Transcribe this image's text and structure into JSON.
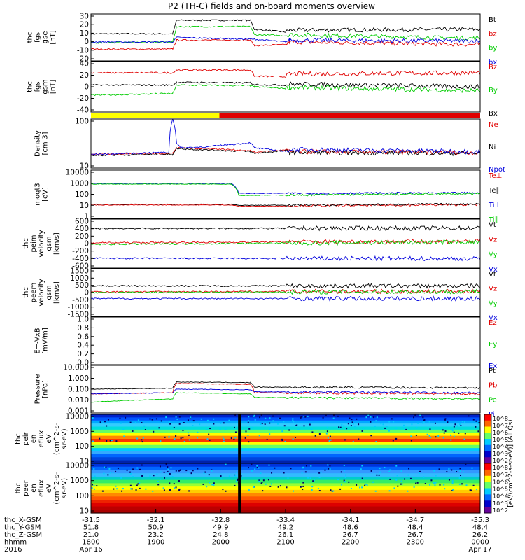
{
  "title": "P2 (TH-C) fields and on-board moments overview",
  "colors": {
    "black": "#000000",
    "red": "#e00000",
    "green": "#00cc00",
    "blue": "#0000dd",
    "yellow": "#ffff00",
    "bar_red": "#e00000"
  },
  "chart_data": [
    {
      "type": "line",
      "ylabel_lines": [
        "thc",
        "fgs",
        "gse",
        "[nT]"
      ],
      "y_ticks": [
        "30",
        "20",
        "10",
        "0",
        "-10",
        "-20"
      ],
      "ylim": [
        -20,
        32
      ],
      "series": [
        {
          "name": "Bt",
          "color": "black",
          "x": [
            0,
            21,
            22,
            41,
            42,
            50,
            51,
            100
          ],
          "y": [
            10,
            10,
            25,
            25,
            15,
            12,
            14,
            15
          ]
        },
        {
          "name": "bz",
          "color": "red",
          "x": [
            0,
            21,
            22,
            41,
            42,
            50,
            51,
            100
          ],
          "y": [
            -7,
            -7,
            3,
            3,
            -3,
            -2,
            1,
            -2
          ]
        },
        {
          "name": "by",
          "color": "green",
          "x": [
            0,
            21,
            22,
            41,
            42,
            50,
            51,
            100
          ],
          "y": [
            0,
            1,
            18,
            18,
            9,
            8,
            9,
            5
          ]
        },
        {
          "name": "bx",
          "color": "blue",
          "x": [
            0,
            21,
            22,
            41,
            42,
            50,
            51,
            100
          ],
          "y": [
            1,
            1,
            6,
            4,
            4,
            1,
            3,
            2
          ]
        }
      ]
    },
    {
      "type": "line",
      "ylabel_lines": [
        "thc",
        "fgs",
        "gsm",
        "[nT]"
      ],
      "y_ticks": [
        "40",
        "20",
        "0",
        "-20",
        "-40"
      ],
      "ylim": [
        -50,
        40
      ],
      "series": [
        {
          "name": "Bz",
          "color": "red",
          "x": [
            0,
            21,
            22,
            41,
            42,
            50,
            51,
            100
          ],
          "y": [
            20,
            20,
            25,
            25,
            14,
            13,
            18,
            20
          ]
        },
        {
          "name": "By",
          "color": "green",
          "x": [
            0,
            21,
            22,
            41,
            42,
            50,
            51,
            100
          ],
          "y": [
            -20,
            -17,
            -2,
            -3,
            -5,
            -8,
            -6,
            -12
          ]
        },
        {
          "name": "Bx",
          "color": "black",
          "x": [
            0,
            21,
            22,
            41,
            42,
            50,
            51,
            100
          ],
          "y": [
            -2,
            -2,
            3,
            2,
            -1,
            -2,
            0,
            -5
          ]
        }
      ]
    },
    {
      "type": "line",
      "ylabel_lines": [
        "Density",
        "[cm-3]"
      ],
      "y_ticks": [
        "100",
        "10"
      ],
      "y_log": true,
      "ylim": [
        4,
        200
      ],
      "series": [
        {
          "name": "Ne",
          "color": "red",
          "x": [
            0,
            21,
            22,
            30,
            41,
            42,
            50,
            51,
            100
          ],
          "y": [
            12,
            13,
            20,
            19,
            16,
            14,
            17,
            15,
            14
          ]
        },
        {
          "name": "Ni",
          "color": "black",
          "x": [
            0,
            21,
            22,
            30,
            41,
            42,
            50,
            51,
            100
          ],
          "y": [
            11,
            12,
            19,
            17,
            15,
            13,
            16,
            14,
            13
          ]
        },
        {
          "name": "Npot",
          "color": "blue",
          "x": [
            0,
            20,
            21,
            22,
            23,
            30,
            41,
            42,
            50,
            51,
            100
          ],
          "y": [
            12,
            14,
            200,
            30,
            20,
            22,
            30,
            20,
            15,
            18,
            15
          ]
        }
      ]
    },
    {
      "type": "line",
      "ylabel_lines": [
        "moqt3",
        "[eV]"
      ],
      "y_ticks": [
        "10000",
        "1000",
        "100",
        "10",
        "1"
      ],
      "y_log": true,
      "ylim": [
        1,
        10000
      ],
      "series": [
        {
          "name": "Te⊥",
          "color": "red",
          "x": [
            0,
            36,
            38,
            100
          ],
          "y": [
            13,
            13,
            10,
            14
          ]
        },
        {
          "name": "Te∥",
          "color": "black",
          "x": [
            0,
            36,
            38,
            100
          ],
          "y": [
            15,
            15,
            12,
            16
          ]
        },
        {
          "name": "Ti⊥",
          "color": "blue",
          "x": [
            0,
            36,
            38,
            100
          ],
          "y": [
            800,
            800,
            120,
            130
          ]
        },
        {
          "name": "Ti∥",
          "color": "green",
          "x": [
            0,
            36,
            38,
            100
          ],
          "y": [
            700,
            700,
            80,
            110
          ]
        }
      ]
    },
    {
      "type": "line",
      "ylabel_lines": [
        "thc",
        "peim",
        "velocity",
        "gsm",
        "[km/s]"
      ],
      "y_ticks": [
        "600",
        "400",
        "200",
        "0",
        "-200",
        "-400",
        "-600"
      ],
      "ylim": [
        -600,
        600
      ],
      "series": [
        {
          "name": "Vt",
          "color": "black",
          "x": [
            0,
            100
          ],
          "y": [
            370,
            380
          ]
        },
        {
          "name": "Vz",
          "color": "red",
          "x": [
            0,
            100
          ],
          "y": [
            20,
            60
          ]
        },
        {
          "name": "Vy",
          "color": "green",
          "x": [
            0,
            100
          ],
          "y": [
            -20,
            40
          ]
        },
        {
          "name": "Vx",
          "color": "blue",
          "x": [
            0,
            100
          ],
          "y": [
            -360,
            -370
          ]
        }
      ]
    },
    {
      "type": "line",
      "ylabel_lines": [
        "thc",
        "peem",
        "velocity",
        "gsm",
        "[km/s]"
      ],
      "y_ticks": [
        "1500",
        "1000",
        "500",
        "0",
        "-500",
        "-1000",
        "-1500"
      ],
      "ylim": [
        -1500,
        1500
      ],
      "series": [
        {
          "name": "Vt",
          "color": "black",
          "x": [
            0,
            100
          ],
          "y": [
            420,
            420
          ]
        },
        {
          "name": "Vz",
          "color": "red",
          "x": [
            0,
            100
          ],
          "y": [
            50,
            80
          ]
        },
        {
          "name": "Vy",
          "color": "green",
          "x": [
            0,
            100
          ],
          "y": [
            0,
            60
          ]
        },
        {
          "name": "Vx",
          "color": "blue",
          "x": [
            0,
            100
          ],
          "y": [
            -380,
            -380
          ]
        }
      ]
    },
    {
      "type": "line",
      "ylabel_lines": [
        "E=-VxB",
        "[mV/m]"
      ],
      "y_ticks": [
        "1.0",
        "0.8",
        "0.6",
        "0.4",
        "0.2",
        "0.0"
      ],
      "ylim": [
        0,
        1
      ],
      "series": [
        {
          "name": "Ez",
          "color": "red",
          "x": [],
          "y": []
        },
        {
          "name": "Ey",
          "color": "green",
          "x": [],
          "y": []
        },
        {
          "name": "Ex",
          "color": "blue",
          "x": [],
          "y": []
        }
      ]
    },
    {
      "type": "line",
      "ylabel_lines": [
        "Pressure",
        "[nPa]"
      ],
      "y_ticks": [
        "10.000",
        "1.000",
        "0.100",
        "0.010",
        "0.001"
      ],
      "y_log": true,
      "ylim": [
        0.001,
        10
      ],
      "series": [
        {
          "name": "Pt",
          "color": "black",
          "x": [
            0,
            21,
            22,
            41,
            42,
            100
          ],
          "y": [
            0.1,
            0.12,
            0.4,
            0.35,
            0.15,
            0.13
          ]
        },
        {
          "name": "Pb",
          "color": "red",
          "x": [
            0,
            21,
            22,
            41,
            42,
            100
          ],
          "y": [
            0.04,
            0.05,
            0.3,
            0.25,
            0.05,
            0.04
          ]
        },
        {
          "name": "Pe",
          "color": "green",
          "x": [
            0,
            21,
            22,
            41,
            42,
            100
          ],
          "y": [
            0.008,
            0.015,
            0.05,
            0.04,
            0.02,
            0.015
          ]
        },
        {
          "name": "Pi",
          "color": "blue",
          "x": [
            0,
            21,
            22,
            41,
            42,
            100
          ],
          "y": [
            0.04,
            0.05,
            0.1,
            0.09,
            0.06,
            0.05
          ]
        }
      ]
    },
    {
      "type": "heatmap",
      "ylabel_lines": [
        "thc",
        "peir",
        "en",
        "eflux",
        "eV",
        "(cm^2-s-",
        "sr-eV)"
      ],
      "y_ticks": [
        "10000",
        "1000",
        "100",
        "10"
      ],
      "y_log": true,
      "colorbar_ticks": [
        "10^8",
        "10^7",
        "10^6",
        "10^5",
        "10^4",
        "10^3",
        "10^2"
      ]
    },
    {
      "type": "heatmap",
      "ylabel_lines": [
        "thc",
        "peer",
        "en",
        "eflux",
        "eV",
        "(cm^2-s-",
        "sr-eV)"
      ],
      "y_ticks": [
        "10000",
        "1000",
        "100",
        "10"
      ],
      "y_log": true,
      "colorbar_ticks": [
        "10^8",
        "10^7",
        "10^6",
        "10^5",
        "10^4",
        "10^3",
        "10^2"
      ]
    }
  ],
  "colorbar_label": "[eV/(cm^2-s-sr-eV)] (All Qs)",
  "x_axis": {
    "row_labels": [
      "thc_X-GSM",
      "thc_Y-GSM",
      "thc_Z-GSM",
      "hhmm",
      "2016"
    ],
    "ticks": [
      {
        "x": "-31.5",
        "y": "51.8",
        "z": "21.0",
        "hhmm": "1800",
        "date": "Apr 16"
      },
      {
        "x": "-32.1",
        "y": "50.9",
        "z": "23.2",
        "hhmm": "1900",
        "date": ""
      },
      {
        "x": "-32.8",
        "y": "49.9",
        "z": "24.8",
        "hhmm": "2000",
        "date": ""
      },
      {
        "x": "-33.4",
        "y": "49.2",
        "z": "26.1",
        "hhmm": "2100",
        "date": ""
      },
      {
        "x": "-34.1",
        "y": "48.6",
        "z": "26.7",
        "hhmm": "2200",
        "date": ""
      },
      {
        "x": "-34.7",
        "y": "48.4",
        "z": "26.7",
        "hhmm": "2300",
        "date": ""
      },
      {
        "x": "-35.3",
        "y": "48.4",
        "z": "26.2",
        "hhmm": "0000",
        "date": "Apr 17"
      }
    ]
  },
  "mode_bar": {
    "yellow_until_fraction": 0.33
  }
}
